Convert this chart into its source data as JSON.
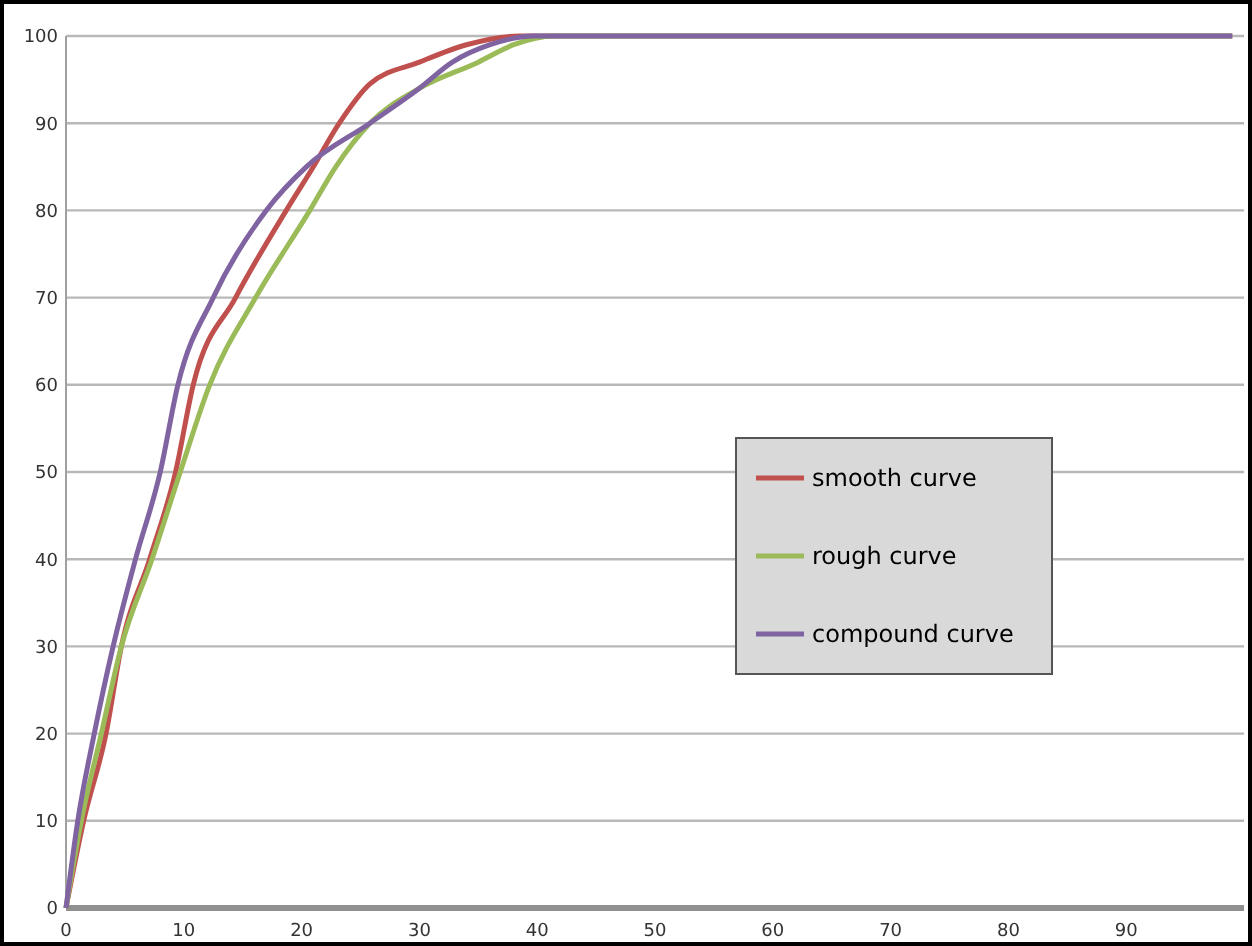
{
  "chart_data": {
    "type": "line",
    "xlim": [
      0,
      100
    ],
    "xticks": [
      0,
      10,
      20,
      30,
      40,
      50,
      60,
      70,
      80,
      90
    ],
    "ylim": [
      0,
      100
    ],
    "yticks": [
      0,
      10,
      20,
      30,
      40,
      50,
      60,
      70,
      80,
      90,
      100
    ],
    "grid": "y",
    "legend": "right",
    "marker": "none",
    "line_style": "solid",
    "series": [
      {
        "name": "smooth curve",
        "color": "#c0504d",
        "x": [
          0,
          1.5,
          3.4,
          4.7,
          7.1,
          9.3,
          10.8,
          14.4,
          18.7,
          21,
          23.2,
          25.8,
          30,
          34,
          38.5,
          99
        ],
        "values": [
          0,
          10,
          20,
          30,
          40,
          50,
          60,
          70,
          80,
          85,
          90,
          94.5,
          97,
          99,
          100,
          100
        ]
      },
      {
        "name": "rough curve",
        "color": "#9bbb59",
        "x": [
          0,
          1.3,
          3,
          4.7,
          7.3,
          9.7,
          12.2,
          16.1,
          20.7,
          22.9,
          25.8,
          30,
          35,
          38,
          41.4,
          99
        ],
        "values": [
          0,
          10,
          20,
          30,
          40,
          50,
          60,
          70,
          80,
          85,
          90,
          94,
          97,
          99,
          100,
          100
        ]
      },
      {
        "name": "compound curve",
        "color": "#8064a2",
        "x": [
          0,
          1,
          2.4,
          4,
          5.9,
          8,
          9.5,
          12.5,
          17,
          20.4,
          25.8,
          30,
          32.8,
          36,
          39.7,
          99
        ],
        "values": [
          0,
          10,
          20,
          30,
          40,
          50,
          60,
          70,
          80,
          85,
          90,
          94,
          97,
          99,
          100,
          100
        ]
      }
    ]
  }
}
